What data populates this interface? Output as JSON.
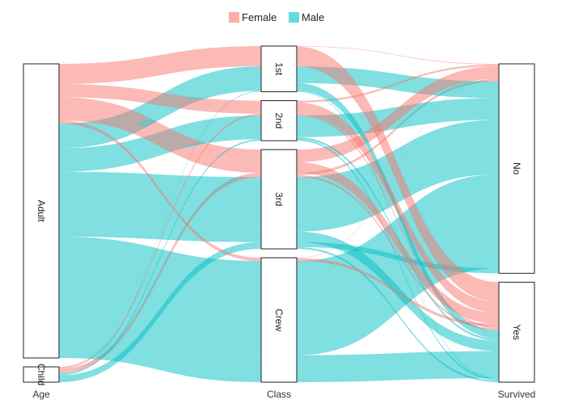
{
  "chart_data": {
    "type": "alluvial",
    "axes": [
      {
        "name": "Age",
        "variable": "age",
        "strata": [
          "Adult",
          "Child"
        ]
      },
      {
        "name": "Class",
        "variable": "class",
        "strata": [
          "1st",
          "2nd",
          "3rd",
          "Crew"
        ]
      },
      {
        "name": "Survived",
        "variable": "survived",
        "strata": [
          "No",
          "Yes"
        ]
      }
    ],
    "legend": {
      "position": "top",
      "entries": [
        {
          "name": "Female",
          "color": "#F8766D"
        },
        {
          "name": "Male",
          "color": "#00BFC4"
        }
      ]
    },
    "fill_opacity": 0.5,
    "alluvia": [
      {
        "sex": "Male",
        "age": "Child",
        "class": "3rd",
        "survived": "No",
        "count": 35
      },
      {
        "sex": "Female",
        "age": "Child",
        "class": "3rd",
        "survived": "No",
        "count": 17
      },
      {
        "sex": "Male",
        "age": "Adult",
        "class": "1st",
        "survived": "No",
        "count": 118
      },
      {
        "sex": "Male",
        "age": "Adult",
        "class": "2nd",
        "survived": "No",
        "count": 154
      },
      {
        "sex": "Male",
        "age": "Adult",
        "class": "3rd",
        "survived": "No",
        "count": 387
      },
      {
        "sex": "Male",
        "age": "Adult",
        "class": "Crew",
        "survived": "No",
        "count": 670
      },
      {
        "sex": "Female",
        "age": "Adult",
        "class": "1st",
        "survived": "No",
        "count": 4
      },
      {
        "sex": "Female",
        "age": "Adult",
        "class": "2nd",
        "survived": "No",
        "count": 13
      },
      {
        "sex": "Female",
        "age": "Adult",
        "class": "3rd",
        "survived": "No",
        "count": 89
      },
      {
        "sex": "Female",
        "age": "Adult",
        "class": "Crew",
        "survived": "No",
        "count": 3
      },
      {
        "sex": "Male",
        "age": "Child",
        "class": "1st",
        "survived": "Yes",
        "count": 5
      },
      {
        "sex": "Male",
        "age": "Child",
        "class": "2nd",
        "survived": "Yes",
        "count": 11
      },
      {
        "sex": "Male",
        "age": "Child",
        "class": "3rd",
        "survived": "Yes",
        "count": 13
      },
      {
        "sex": "Female",
        "age": "Child",
        "class": "1st",
        "survived": "Yes",
        "count": 1
      },
      {
        "sex": "Female",
        "age": "Child",
        "class": "2nd",
        "survived": "Yes",
        "count": 13
      },
      {
        "sex": "Female",
        "age": "Child",
        "class": "3rd",
        "survived": "Yes",
        "count": 14
      },
      {
        "sex": "Male",
        "age": "Adult",
        "class": "1st",
        "survived": "Yes",
        "count": 57
      },
      {
        "sex": "Male",
        "age": "Adult",
        "class": "2nd",
        "survived": "Yes",
        "count": 14
      },
      {
        "sex": "Male",
        "age": "Adult",
        "class": "3rd",
        "survived": "Yes",
        "count": 75
      },
      {
        "sex": "Male",
        "age": "Adult",
        "class": "Crew",
        "survived": "Yes",
        "count": 192
      },
      {
        "sex": "Female",
        "age": "Adult",
        "class": "1st",
        "survived": "Yes",
        "count": 140
      },
      {
        "sex": "Female",
        "age": "Adult",
        "class": "2nd",
        "survived": "Yes",
        "count": 80
      },
      {
        "sex": "Female",
        "age": "Adult",
        "class": "3rd",
        "survived": "Yes",
        "count": 76
      },
      {
        "sex": "Female",
        "age": "Adult",
        "class": "Crew",
        "survived": "Yes",
        "count": 20
      }
    ]
  }
}
